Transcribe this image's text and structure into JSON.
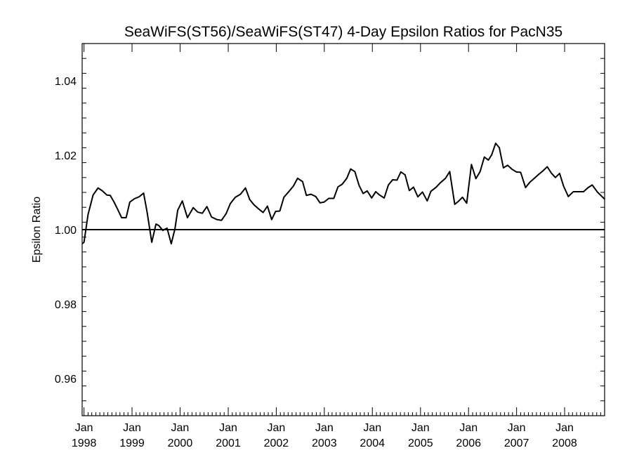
{
  "chart_data": {
    "type": "line",
    "title": "SeaWiFS(ST56)/SeaWiFS(ST47) 4-Day Epsilon Ratios for PacN35",
    "xlabel": "",
    "ylabel": "Epsilon Ratio",
    "ylim": [
      0.95,
      1.05
    ],
    "xlim": [
      "1997-12-18",
      "2008-10-31"
    ],
    "y_ticks": [
      {
        "value": 0.96,
        "label": "0.96"
      },
      {
        "value": 0.98,
        "label": "0.98"
      },
      {
        "value": 1.0,
        "label": "1.00"
      },
      {
        "value": 1.02,
        "label": "1.02"
      },
      {
        "value": 1.04,
        "label": "1.04"
      }
    ],
    "y_minor_step": 0.004,
    "x_ticks": [
      {
        "date": "1998-01-01",
        "month": "Jan",
        "year": "1998"
      },
      {
        "date": "1999-01-01",
        "month": "Jan",
        "year": "1999"
      },
      {
        "date": "2000-01-01",
        "month": "Jan",
        "year": "2000"
      },
      {
        "date": "2001-01-01",
        "month": "Jan",
        "year": "2001"
      },
      {
        "date": "2002-01-01",
        "month": "Jan",
        "year": "2002"
      },
      {
        "date": "2003-01-01",
        "month": "Jan",
        "year": "2003"
      },
      {
        "date": "2004-01-01",
        "month": "Jan",
        "year": "2004"
      },
      {
        "date": "2005-01-01",
        "month": "Jan",
        "year": "2005"
      },
      {
        "date": "2006-01-01",
        "month": "Jan",
        "year": "2006"
      },
      {
        "date": "2007-01-01",
        "month": "Jan",
        "year": "2007"
      },
      {
        "date": "2008-01-01",
        "month": "Jan",
        "year": "2008"
      }
    ],
    "reference_line": 1.0,
    "series": [
      {
        "color": "#000000",
        "x": [
          "1997-12-18",
          "1998-01-01",
          "1998-02-01",
          "1998-03-11",
          "1998-04-18",
          "1998-05-21",
          "1998-06-24",
          "1998-07-19",
          "1998-08-16",
          "1998-09-16",
          "1998-10-14",
          "1998-11-17",
          "1998-12-15",
          "1999-01-19",
          "1999-02-23",
          "1999-03-30",
          "1999-04-25",
          "1999-05-31",
          "1999-07-02",
          "1999-07-23",
          "1999-08-23",
          "1999-09-24",
          "1999-10-26",
          "1999-11-23",
          "1999-12-14",
          "2000-01-18",
          "2000-02-26",
          "2000-04-10",
          "2000-05-14",
          "2000-06-18",
          "2000-07-23",
          "2000-08-27",
          "2000-10-07",
          "2000-11-11",
          "2000-12-16",
          "2001-01-17",
          "2001-02-24",
          "2001-04-04",
          "2001-05-12",
          "2001-06-13",
          "2001-07-15",
          "2001-08-19",
          "2001-09-23",
          "2001-10-26",
          "2001-11-27",
          "2001-12-27",
          "2002-01-28",
          "2002-02-28",
          "2002-04-06",
          "2002-05-11",
          "2002-06-12",
          "2002-07-20",
          "2002-08-18",
          "2002-09-22",
          "2002-10-28",
          "2002-11-29",
          "2002-12-30",
          "2003-02-04",
          "2003-03-14",
          "2003-04-15",
          "2003-05-17",
          "2003-06-21",
          "2003-07-20",
          "2003-08-21",
          "2003-09-22",
          "2003-10-23",
          "2003-11-23",
          "2003-12-27",
          "2004-01-27",
          "2004-02-25",
          "2004-03-31",
          "2004-05-02",
          "2004-06-03",
          "2004-07-06",
          "2004-08-05",
          "2004-09-06",
          "2004-10-08",
          "2004-11-09",
          "2004-12-12",
          "2005-01-16",
          "2005-02-21",
          "2005-03-21",
          "2005-04-30",
          "2005-06-01",
          "2005-07-10",
          "2005-08-11",
          "2005-09-18",
          "2005-10-16",
          "2005-11-16",
          "2005-12-18",
          "2006-01-23",
          "2006-02-26",
          "2006-03-30",
          "2006-05-01",
          "2006-06-01",
          "2006-06-26",
          "2006-07-26",
          "2006-08-23",
          "2006-09-23",
          "2006-10-25",
          "2006-11-28",
          "2006-12-31",
          "2007-02-01",
          "2007-03-10",
          "2007-04-11",
          "2007-05-19",
          "2007-06-20",
          "2007-07-21",
          "2007-08-22",
          "2007-09-22",
          "2007-10-23",
          "2007-11-24",
          "2007-12-24",
          "2008-01-29",
          "2008-03-08",
          "2008-04-19",
          "2008-05-24",
          "2008-06-28",
          "2008-07-29",
          "2008-09-06",
          "2008-10-31"
        ],
        "y": [
          0.9962,
          0.9966,
          1.0041,
          1.0093,
          1.0112,
          1.0104,
          1.0093,
          1.0092,
          1.0075,
          1.0053,
          1.0032,
          1.0032,
          1.0074,
          1.0083,
          1.0088,
          1.0098,
          1.0048,
          0.9966,
          1.0015,
          1.0011,
          0.9998,
          1.0004,
          0.9962,
          1.0002,
          1.0052,
          1.0077,
          1.0032,
          1.0059,
          1.0047,
          1.0044,
          1.0062,
          1.0034,
          1.0027,
          1.0025,
          1.0043,
          1.007,
          1.0087,
          1.0095,
          1.0112,
          1.0081,
          1.0067,
          1.0056,
          1.0046,
          1.0063,
          1.0027,
          1.0049,
          1.005,
          1.0087,
          1.0102,
          1.0117,
          1.0138,
          1.0129,
          1.0092,
          1.0095,
          1.0089,
          1.0072,
          1.0074,
          1.0084,
          1.0084,
          1.0115,
          1.0122,
          1.0138,
          1.0163,
          1.0156,
          1.0119,
          1.0097,
          1.0104,
          1.0085,
          1.0102,
          1.0093,
          1.0085,
          1.012,
          1.0134,
          1.0133,
          1.0155,
          1.0147,
          1.0105,
          1.0114,
          1.0088,
          1.0101,
          1.0077,
          1.0103,
          1.0114,
          1.0126,
          1.0138,
          1.0156,
          1.0068,
          1.0076,
          1.0087,
          1.0071,
          1.0175,
          1.0137,
          1.0156,
          1.0195,
          1.0187,
          1.0201,
          1.0232,
          1.022,
          1.0166,
          1.0173,
          1.0162,
          1.0155,
          1.0154,
          1.0113,
          1.0127,
          1.0139,
          1.0149,
          1.0158,
          1.0169,
          1.0152,
          1.014,
          1.0151,
          1.0117,
          1.0089,
          1.0102,
          1.0102,
          1.0102,
          1.0113,
          1.012,
          1.0101,
          1.0082
        ]
      }
    ]
  }
}
